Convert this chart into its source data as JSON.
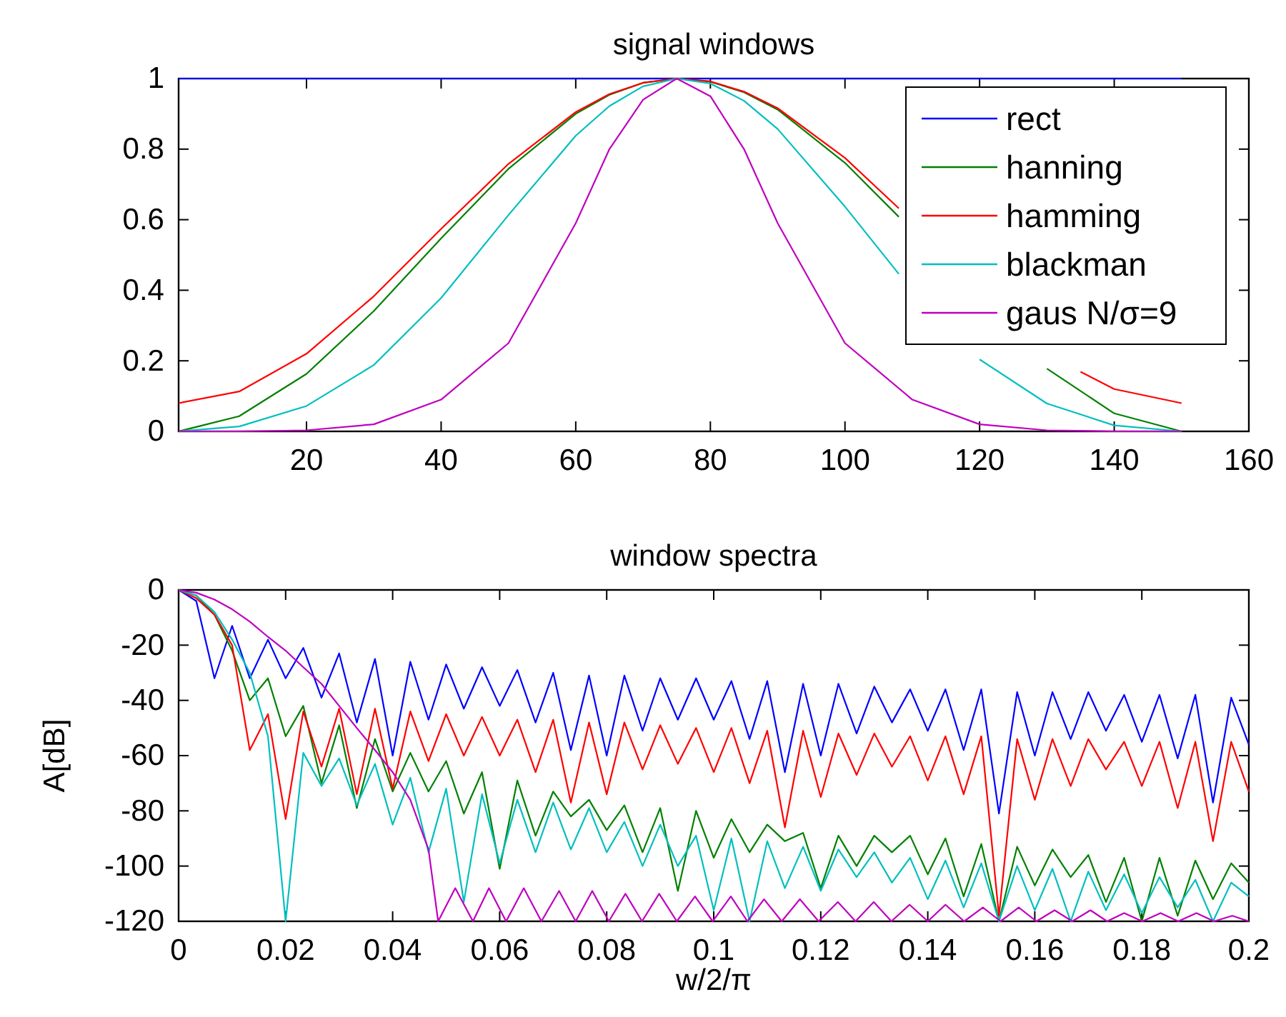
{
  "chart_data": [
    {
      "type": "line",
      "title": "signal windows",
      "xlim": [
        1,
        160
      ],
      "xticks": [
        20,
        40,
        60,
        80,
        100,
        120,
        140,
        160
      ],
      "ylim": [
        0,
        1
      ],
      "yticks": [
        0,
        0.2,
        0.4,
        0.6,
        0.8,
        1
      ],
      "legend": "top right",
      "series": [
        {
          "name": "rect",
          "color": "#0000ff",
          "x": [
            1,
            75,
            150
          ],
          "values": [
            1,
            1,
            1
          ]
        },
        {
          "name": "hanning",
          "color": "#008000",
          "x": [
            1,
            10,
            20,
            30,
            40,
            50,
            60,
            65,
            70,
            75,
            80,
            85,
            90,
            100,
            108,
            110,
            120,
            130,
            140,
            150
          ],
          "values": [
            0,
            0.043,
            0.163,
            0.341,
            0.547,
            0.744,
            0.9,
            0.954,
            0.988,
            1,
            0.991,
            0.961,
            0.912,
            0.761,
            0.608,
            null,
            null,
            0.178,
            0.051,
            0
          ]
        },
        {
          "name": "hamming",
          "color": "#ff0000",
          "x": [
            1,
            10,
            20,
            30,
            40,
            50,
            60,
            65,
            70,
            75,
            80,
            85,
            90,
            100,
            108,
            110,
            120,
            130,
            135,
            140,
            150
          ],
          "values": [
            0.08,
            0.113,
            0.22,
            0.383,
            0.574,
            0.758,
            0.905,
            0.956,
            0.988,
            1,
            0.992,
            0.963,
            0.916,
            0.775,
            0.632,
            null,
            null,
            null,
            0.169,
            0.12,
            0.08
          ]
        },
        {
          "name": "blackman",
          "color": "#00bfbf",
          "x": [
            1,
            10,
            20,
            30,
            40,
            50,
            60,
            65,
            70,
            75,
            80,
            85,
            90,
            100,
            108,
            110,
            120,
            130,
            140,
            150
          ],
          "values": [
            0,
            0.014,
            0.072,
            0.188,
            0.378,
            0.613,
            0.838,
            0.922,
            0.978,
            1,
            0.986,
            0.937,
            0.857,
            0.637,
            0.446,
            null,
            0.204,
            0.079,
            0.017,
            0
          ]
        },
        {
          "name": "gaus N/σ=9",
          "color": "#bf00bf",
          "x": [
            1,
            10,
            20,
            30,
            40,
            50,
            60,
            65,
            70,
            75,
            80,
            85,
            90,
            100,
            110,
            120,
            130,
            140,
            150
          ],
          "values": [
            0,
            0,
            0.003,
            0.02,
            0.09,
            0.25,
            0.59,
            0.8,
            0.94,
            1,
            0.95,
            0.8,
            0.59,
            0.25,
            0.09,
            0.02,
            0.003,
            0,
            0
          ]
        }
      ]
    },
    {
      "type": "line",
      "title": "window spectra",
      "xlabel": "w/2/π",
      "ylabel": "A[dB]",
      "x": [
        0,
        0.0033,
        0.0067,
        0.01,
        0.0133,
        0.0167,
        0.02,
        0.0233,
        0.0267,
        0.03,
        0.0333,
        0.0367,
        0.04,
        0.0433,
        0.0467,
        0.05,
        0.0533,
        0.0567,
        0.06,
        0.0633,
        0.0667,
        0.07,
        0.0733,
        0.0767,
        0.08,
        0.0833,
        0.0867,
        0.09,
        0.0933,
        0.0967,
        0.1,
        0.1033,
        0.1067,
        0.11,
        0.1133,
        0.1167,
        0.12,
        0.1233,
        0.1267,
        0.13,
        0.1333,
        0.1367,
        0.14,
        0.1433,
        0.1467,
        0.15,
        0.1533,
        0.1567,
        0.16,
        0.1633,
        0.1667,
        0.17,
        0.1733,
        0.1767,
        0.18,
        0.1833,
        0.1867,
        0.19,
        0.1933,
        0.1967,
        0.2
      ],
      "xlim": [
        0,
        0.2
      ],
      "xticks": [
        0,
        0.02,
        0.04,
        0.06,
        0.08,
        0.1,
        0.12,
        0.14,
        0.16,
        0.18,
        0.2
      ],
      "ylim": [
        -120,
        0
      ],
      "yticks": [
        -120,
        -100,
        -80,
        -60,
        -40,
        -20,
        0
      ],
      "series": [
        {
          "color": "#0000ff",
          "values": [
            0,
            -4,
            -32,
            -13,
            -32,
            -18,
            -32,
            -21,
            -39,
            -23,
            -48,
            -25,
            -60,
            -26,
            -47,
            -27,
            -43,
            -28,
            -42,
            -29,
            -48,
            -30,
            -58,
            -31,
            -60,
            -31,
            -51,
            -32,
            -47,
            -32,
            -47,
            -33,
            -54,
            -33,
            -66,
            -34,
            -60,
            -34,
            -52,
            -35,
            -48,
            -36,
            -51,
            -36,
            -58,
            -36,
            -81,
            -37,
            -60,
            -37,
            -54,
            -37,
            -51,
            -38,
            -55,
            -38,
            -61,
            -38,
            -77,
            -39,
            -56
          ]
        },
        {
          "color": "#008000",
          "values": [
            0,
            -2,
            -9,
            -22,
            -40,
            -32,
            -53,
            -42,
            -70,
            -49,
            -79,
            -54,
            -73,
            -59,
            -73,
            -62,
            -81,
            -66,
            -101,
            -69,
            -89,
            -73,
            -82,
            -76,
            -87,
            -78,
            -95,
            -79,
            -109,
            -80,
            -97,
            -83,
            -95,
            -85,
            -91,
            -88,
            -108,
            -89,
            -100,
            -89,
            -95,
            -89,
            -103,
            -90,
            -111,
            -92,
            -120,
            -93,
            -107,
            -94,
            -104,
            -96,
            -113,
            -97,
            -120,
            -97,
            -118,
            -98,
            -112,
            -99,
            -106
          ]
        },
        {
          "color": "#ff0000",
          "values": [
            0,
            -3,
            -9,
            -20,
            -58,
            -45,
            -83,
            -44,
            -64,
            -43,
            -74,
            -43,
            -72,
            -44,
            -62,
            -45,
            -60,
            -46,
            -60,
            -47,
            -66,
            -47,
            -77,
            -48,
            -74,
            -48,
            -65,
            -49,
            -63,
            -50,
            -66,
            -50,
            -70,
            -51,
            -86,
            -51,
            -75,
            -52,
            -67,
            -52,
            -64,
            -53,
            -69,
            -53,
            -74,
            -53,
            -118,
            -54,
            -76,
            -54,
            -71,
            -54,
            -65,
            -55,
            -71,
            -55,
            -79,
            -55,
            -91,
            -55,
            -73
          ]
        },
        {
          "color": "#00bfbf",
          "values": [
            0,
            -2,
            -8,
            -18,
            -30,
            -53,
            -120,
            -59,
            -71,
            -61,
            -78,
            -63,
            -85,
            -68,
            -95,
            -72,
            -113,
            -74,
            -99,
            -76,
            -95,
            -77,
            -94,
            -79,
            -95,
            -84,
            -100,
            -85,
            -100,
            -89,
            -116,
            -90,
            -120,
            -91,
            -108,
            -93,
            -109,
            -94,
            -104,
            -95,
            -106,
            -97,
            -112,
            -98,
            -115,
            -99,
            -120,
            -100,
            -116,
            -101,
            -120,
            -102,
            -116,
            -103,
            -117,
            -104,
            -115,
            -105,
            -120,
            -106,
            -111
          ]
        },
        {
          "color": "#bf00bf",
          "x": [
            0,
            0.0033,
            0.0067,
            0.01,
            0.0133,
            0.0167,
            0.02,
            0.0233,
            0.0267,
            0.03,
            0.0333,
            0.0367,
            0.04,
            0.0433,
            0.0467,
            0.0485,
            0.0517,
            0.055,
            0.058,
            0.0612,
            0.0645,
            0.0678,
            0.0711,
            0.0742,
            0.0773,
            0.0804,
            0.0835,
            0.0866,
            0.0898,
            0.0931,
            0.0965,
            0.0998,
            0.1032,
            0.1063,
            0.1094,
            0.1127,
            0.1161,
            0.1196,
            0.1232,
            0.1265,
            0.1299,
            0.1332,
            0.1366,
            0.14,
            0.1433,
            0.1468,
            0.1503,
            0.1536,
            0.157,
            0.1603,
            0.1637,
            0.167,
            0.1704,
            0.1735,
            0.1767,
            0.1801,
            0.1835,
            0.1868,
            0.1902,
            0.1935,
            0.1969,
            0.2
          ],
          "values": [
            0,
            -1,
            -3.5,
            -7,
            -11.5,
            -17,
            -22,
            -28,
            -34,
            -42,
            -50,
            -58,
            -66,
            -76,
            -94,
            -120,
            -108,
            -120,
            -108,
            -120,
            -108,
            -120,
            -109,
            -120,
            -109,
            -120,
            -110,
            -120,
            -110,
            -120,
            -111,
            -120,
            -111,
            -120,
            -112,
            -120,
            -112,
            -120,
            -113,
            -120,
            -113,
            -120,
            -114,
            -120,
            -114,
            -120,
            -115,
            -120,
            -115,
            -120,
            -116,
            -120,
            -116,
            -120,
            -117,
            -120,
            -117,
            -120,
            -117,
            -120,
            -118,
            -120
          ]
        }
      ]
    }
  ]
}
